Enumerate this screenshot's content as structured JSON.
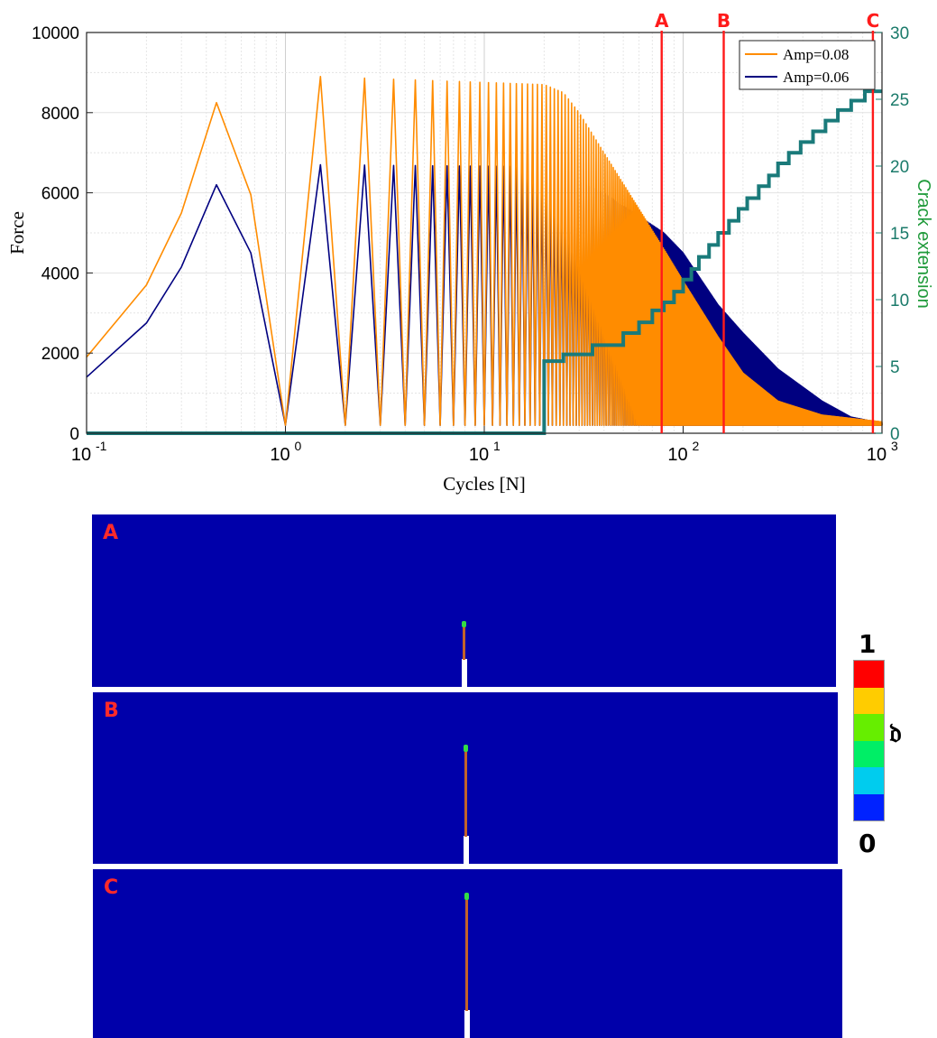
{
  "chart_data": {
    "type": "line",
    "xlabel": "Cycles [N]",
    "ylabel_left": "Force",
    "ylabel_right": "Crack extension",
    "xscale": "log",
    "xlim": [
      0.1,
      1000
    ],
    "ylim_left": [
      0,
      10000
    ],
    "ylim_right": [
      0,
      30
    ],
    "x_ticks": [
      "10",
      "10",
      "10",
      "10",
      "10"
    ],
    "x_tick_exponents": [
      "-1",
      "0",
      "1",
      "2",
      "3"
    ],
    "y_ticks_left": [
      "0",
      "2000",
      "4000",
      "6000",
      "8000",
      "10000"
    ],
    "y_ticks_right": [
      "0",
      "5",
      "10",
      "15",
      "20",
      "25",
      "30"
    ],
    "grid": true,
    "legend_position": "top-right",
    "series": [
      {
        "name": "Amp=0.08",
        "color": "#ff8c00",
        "peak_envelope": [
          [
            0.1,
            1900
          ],
          [
            0.2,
            3700
          ],
          [
            0.3,
            5500
          ],
          [
            0.45,
            8250
          ],
          [
            0.67,
            5950
          ],
          [
            1.0,
            200
          ],
          [
            1.5,
            8900
          ],
          [
            20,
            8700
          ],
          [
            25,
            8500
          ],
          [
            30,
            8000
          ],
          [
            40,
            7000
          ],
          [
            60,
            5600
          ],
          [
            80,
            4600
          ],
          [
            100,
            3800
          ],
          [
            150,
            2400
          ],
          [
            200,
            1500
          ],
          [
            300,
            800
          ],
          [
            500,
            450
          ],
          [
            1000,
            280
          ]
        ],
        "valley": 200
      },
      {
        "name": "Amp=0.06",
        "color": "#000080",
        "peak_envelope": [
          [
            0.1,
            1400
          ],
          [
            0.2,
            2750
          ],
          [
            0.3,
            4150
          ],
          [
            0.45,
            6200
          ],
          [
            0.67,
            4500
          ],
          [
            1.0,
            200
          ],
          [
            1.5,
            6700
          ],
          [
            20,
            6650
          ],
          [
            25,
            6450
          ],
          [
            40,
            6000
          ],
          [
            80,
            5000
          ],
          [
            100,
            4500
          ],
          [
            150,
            3200
          ],
          [
            200,
            2500
          ],
          [
            300,
            1600
          ],
          [
            500,
            800
          ],
          [
            700,
            400
          ],
          [
            1000,
            250
          ]
        ],
        "valley": 200
      },
      {
        "name": "Crack extension",
        "axis": "right",
        "color": "#1a7a7a",
        "step_points": [
          [
            0.1,
            0
          ],
          [
            20,
            0
          ],
          [
            20,
            5.4
          ],
          [
            25,
            5.4
          ],
          [
            25,
            5.9
          ],
          [
            35,
            5.9
          ],
          [
            35,
            6.6
          ],
          [
            50,
            6.6
          ],
          [
            50,
            7.5
          ],
          [
            60,
            7.5
          ],
          [
            60,
            8.3
          ],
          [
            70,
            8.3
          ],
          [
            70,
            9.2
          ],
          [
            80,
            9.2
          ],
          [
            80,
            9.8
          ],
          [
            90,
            9.8
          ],
          [
            90,
            10.6
          ],
          [
            100,
            10.6
          ],
          [
            100,
            11.5
          ],
          [
            110,
            11.5
          ],
          [
            110,
            12.3
          ],
          [
            120,
            12.3
          ],
          [
            120,
            13.2
          ],
          [
            135,
            13.2
          ],
          [
            135,
            14.1
          ],
          [
            150,
            14.1
          ],
          [
            150,
            15
          ],
          [
            170,
            15
          ],
          [
            170,
            15.9
          ],
          [
            190,
            15.9
          ],
          [
            190,
            16.8
          ],
          [
            210,
            16.8
          ],
          [
            210,
            17.6
          ],
          [
            240,
            17.6
          ],
          [
            240,
            18.5
          ],
          [
            270,
            18.5
          ],
          [
            270,
            19.3
          ],
          [
            300,
            19.3
          ],
          [
            300,
            20.2
          ],
          [
            340,
            20.2
          ],
          [
            340,
            21
          ],
          [
            390,
            21
          ],
          [
            390,
            21.8
          ],
          [
            450,
            21.8
          ],
          [
            450,
            22.6
          ],
          [
            520,
            22.6
          ],
          [
            520,
            23.4
          ],
          [
            600,
            23.4
          ],
          [
            600,
            24.2
          ],
          [
            700,
            24.2
          ],
          [
            700,
            24.9
          ],
          [
            820,
            24.9
          ],
          [
            820,
            25.6
          ],
          [
            1000,
            25.6
          ]
        ]
      }
    ],
    "markers": [
      {
        "label": "A",
        "x": 78,
        "color": "#ff1a1a"
      },
      {
        "label": "B",
        "x": 160,
        "color": "#ff1a1a"
      },
      {
        "label": "C",
        "x": 900,
        "color": "#ff1a1a"
      }
    ]
  },
  "panels": [
    {
      "label": "A",
      "crack_fraction": 0.23
    },
    {
      "label": "B",
      "crack_fraction": 0.42
    },
    {
      "label": "C",
      "crack_fraction": 0.66
    }
  ],
  "colorbar": {
    "max_label": "1",
    "min_label": "0",
    "symbol": "𝔡",
    "colors": [
      "#ff0000",
      "#ffcc00",
      "#66ee00",
      "#00ee66",
      "#00ccee",
      "#0022ff"
    ]
  }
}
